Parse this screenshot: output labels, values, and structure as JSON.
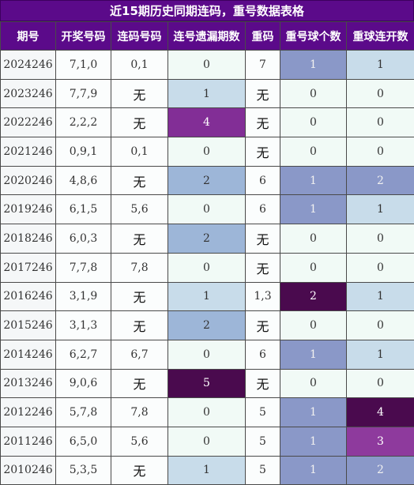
{
  "title": "近15期历史同期连码，重号数据表格",
  "headers": [
    "期号",
    "开奖号码",
    "连码号码",
    "连号遗漏期数",
    "重码",
    "重号球个数",
    "重球连开数"
  ],
  "rows": [
    {
      "issue": "2024246",
      "numbers": "7,1,0",
      "consecutive": "0,1",
      "miss": "0",
      "repeat": "7",
      "repeat_count": "1",
      "repeat_streak": "1"
    },
    {
      "issue": "2023246",
      "numbers": "7,7,9",
      "consecutive": "无",
      "miss": "1",
      "repeat": "无",
      "repeat_count": "0",
      "repeat_streak": "0"
    },
    {
      "issue": "2022246",
      "numbers": "2,2,2",
      "consecutive": "无",
      "miss": "4",
      "repeat": "无",
      "repeat_count": "0",
      "repeat_streak": "0"
    },
    {
      "issue": "2021246",
      "numbers": "0,9,1",
      "consecutive": "0,1",
      "miss": "0",
      "repeat": "无",
      "repeat_count": "0",
      "repeat_streak": "0"
    },
    {
      "issue": "2020246",
      "numbers": "4,8,6",
      "consecutive": "无",
      "miss": "2",
      "repeat": "6",
      "repeat_count": "1",
      "repeat_streak": "2"
    },
    {
      "issue": "2019246",
      "numbers": "6,1,5",
      "consecutive": "5,6",
      "miss": "0",
      "repeat": "6",
      "repeat_count": "1",
      "repeat_streak": "1"
    },
    {
      "issue": "2018246",
      "numbers": "6,0,3",
      "consecutive": "无",
      "miss": "2",
      "repeat": "无",
      "repeat_count": "0",
      "repeat_streak": "0"
    },
    {
      "issue": "2017246",
      "numbers": "7,7,8",
      "consecutive": "7,8",
      "miss": "0",
      "repeat": "无",
      "repeat_count": "0",
      "repeat_streak": "0"
    },
    {
      "issue": "2016246",
      "numbers": "3,1,9",
      "consecutive": "无",
      "miss": "1",
      "repeat": "1,3",
      "repeat_count": "2",
      "repeat_streak": "1"
    },
    {
      "issue": "2015246",
      "numbers": "3,1,3",
      "consecutive": "无",
      "miss": "2",
      "repeat": "无",
      "repeat_count": "0",
      "repeat_streak": "0"
    },
    {
      "issue": "2014246",
      "numbers": "6,2,7",
      "consecutive": "6,7",
      "miss": "0",
      "repeat": "6",
      "repeat_count": "1",
      "repeat_streak": "1"
    },
    {
      "issue": "2013246",
      "numbers": "9,0,6",
      "consecutive": "无",
      "miss": "5",
      "repeat": "无",
      "repeat_count": "0",
      "repeat_streak": "0"
    },
    {
      "issue": "2012246",
      "numbers": "5,7,8",
      "consecutive": "7,8",
      "miss": "0",
      "repeat": "5",
      "repeat_count": "1",
      "repeat_streak": "4"
    },
    {
      "issue": "2011246",
      "numbers": "6,5,0",
      "consecutive": "5,6",
      "miss": "0",
      "repeat": "5",
      "repeat_count": "1",
      "repeat_streak": "3"
    },
    {
      "issue": "2010246",
      "numbers": "5,3,5",
      "consecutive": "无",
      "miss": "1",
      "repeat": "5",
      "repeat_count": "1",
      "repeat_streak": "2"
    }
  ],
  "colors": {
    "header_bg": "#5b0a8a",
    "header_text": "#ffffff",
    "level_light": "#c8dcea",
    "level_mid": "#9db6d8",
    "level_blue_violet": "#8a98c8",
    "level_purple": "#822e96",
    "level_dark": "#4a0a4e"
  }
}
